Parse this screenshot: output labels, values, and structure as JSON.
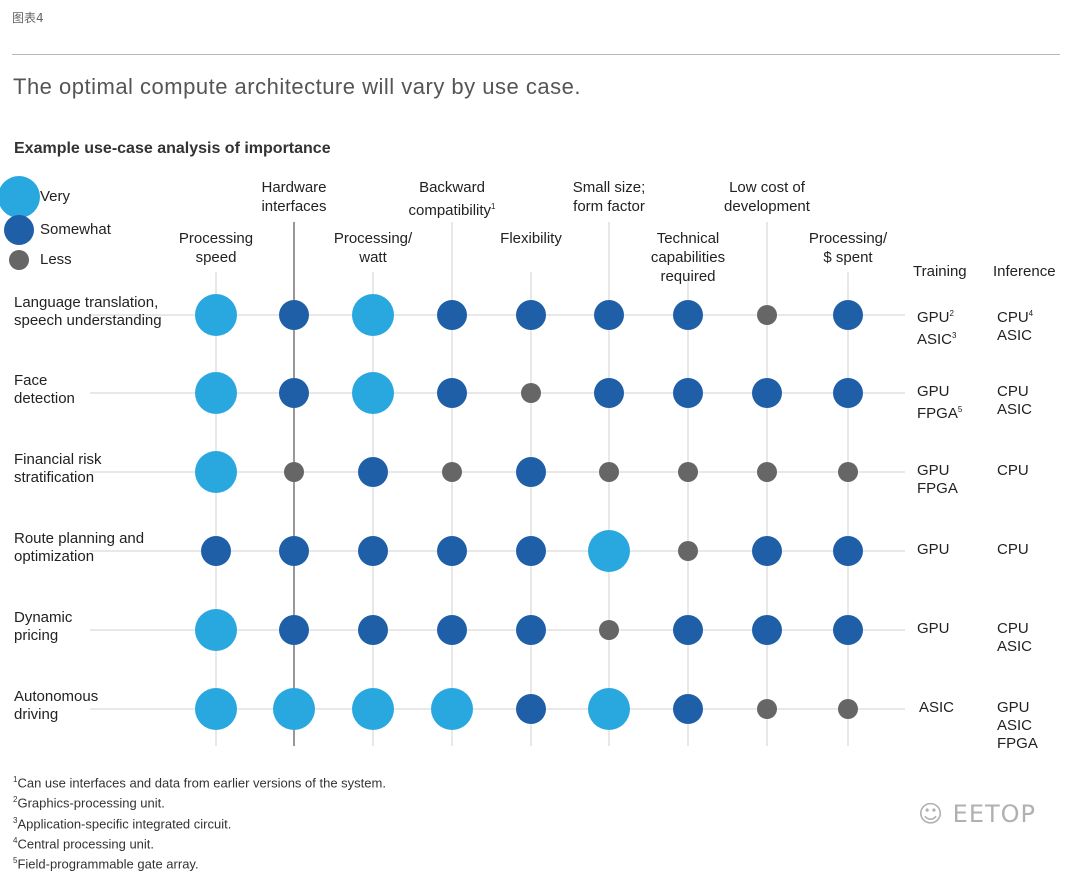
{
  "header": {
    "tag": "图表4",
    "title": "The optimal compute architecture will vary by use case.",
    "subtitle": "Example use-case analysis of importance"
  },
  "legend": {
    "very": "Very",
    "somewhat": "Somewhat",
    "less": "Less"
  },
  "colors": {
    "very": "#29a8e0",
    "somewhat": "#1f5fa8",
    "less": "#666666",
    "gridline": "#d2d2d2",
    "axis": "#555555"
  },
  "side_headers": {
    "training": "Training",
    "inference": "Inference"
  },
  "chart_data": {
    "type": "table",
    "title": "Example use-case analysis of importance",
    "scale": [
      "Less",
      "Somewhat",
      "Very"
    ],
    "columns": [
      {
        "label": "Processing\nspeed"
      },
      {
        "label": "Hardware\ninterfaces"
      },
      {
        "label": "Processing/\nwatt"
      },
      {
        "label": "Backward\ncompatibility",
        "note": "1"
      },
      {
        "label": "Flexibility"
      },
      {
        "label": "Small size;\nform factor"
      },
      {
        "label": "Technical\ncapabilities\nrequired"
      },
      {
        "label": "Low cost of\ndevelopment"
      },
      {
        "label": "Processing/\n$ spent"
      }
    ],
    "rows": [
      {
        "label": "Language translation,\nspeech understanding",
        "values": [
          "Very",
          "Somewhat",
          "Very",
          "Somewhat",
          "Somewhat",
          "Somewhat",
          "Somewhat",
          "Less",
          "Somewhat"
        ],
        "training": [
          {
            "text": "GPU",
            "note": "2"
          },
          {
            "text": "ASIC",
            "note": "3"
          }
        ],
        "inference": [
          {
            "text": "CPU",
            "note": "4"
          },
          {
            "text": "ASIC"
          }
        ]
      },
      {
        "label": "Face\ndetection",
        "values": [
          "Very",
          "Somewhat",
          "Very",
          "Somewhat",
          "Less",
          "Somewhat",
          "Somewhat",
          "Somewhat",
          "Somewhat"
        ],
        "training": [
          {
            "text": "GPU"
          },
          {
            "text": "FPGA",
            "note": "5"
          }
        ],
        "inference": [
          {
            "text": "CPU"
          },
          {
            "text": "ASIC"
          }
        ]
      },
      {
        "label": "Financial risk\nstratification",
        "values": [
          "Very",
          "Less",
          "Somewhat",
          "Less",
          "Somewhat",
          "Less",
          "Less",
          "Less",
          "Less"
        ],
        "training": [
          {
            "text": "GPU"
          },
          {
            "text": "FPGA"
          }
        ],
        "inference": [
          {
            "text": "CPU"
          }
        ]
      },
      {
        "label": "Route planning and\noptimization",
        "values": [
          "Somewhat",
          "Somewhat",
          "Somewhat",
          "Somewhat",
          "Somewhat",
          "Very",
          "Less",
          "Somewhat",
          "Somewhat"
        ],
        "training": [
          {
            "text": "GPU"
          }
        ],
        "inference": [
          {
            "text": "CPU"
          }
        ]
      },
      {
        "label": "Dynamic\npricing",
        "values": [
          "Very",
          "Somewhat",
          "Somewhat",
          "Somewhat",
          "Somewhat",
          "Less",
          "Somewhat",
          "Somewhat",
          "Somewhat"
        ],
        "training": [
          {
            "text": "GPU"
          }
        ],
        "inference": [
          {
            "text": "CPU"
          },
          {
            "text": "ASIC"
          }
        ]
      },
      {
        "label": "Autonomous\ndriving",
        "values": [
          "Very",
          "Very",
          "Very",
          "Very",
          "Somewhat",
          "Very",
          "Somewhat",
          "Less",
          "Less"
        ],
        "training": [
          {
            "text": "ASIC"
          }
        ],
        "inference": [
          {
            "text": "GPU"
          },
          {
            "text": "ASIC"
          },
          {
            "text": "FPGA"
          }
        ]
      }
    ]
  },
  "footnotes": [
    {
      "n": "1",
      "text": "Can use interfaces and data from earlier versions of the system."
    },
    {
      "n": "2",
      "text": "Graphics-processing unit."
    },
    {
      "n": "3",
      "text": "Application-specific integrated circuit."
    },
    {
      "n": "4",
      "text": "Central processing unit."
    },
    {
      "n": "5",
      "text": "Field-programmable gate array."
    }
  ],
  "watermark": "EETOP",
  "watermark_icon": "wechat-icon"
}
